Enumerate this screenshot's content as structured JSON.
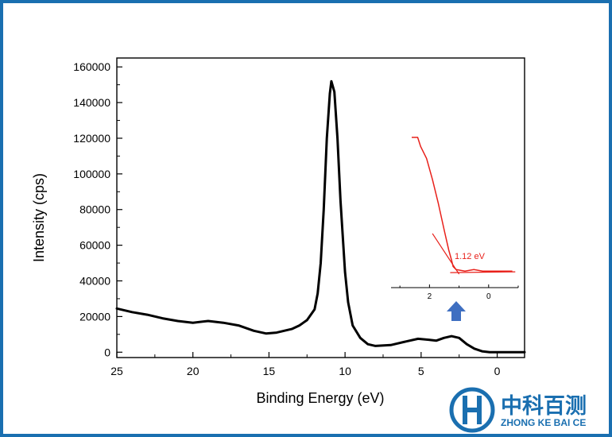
{
  "chart_data": {
    "type": "line",
    "xlabel": "Binding Energy (eV)",
    "ylabel": "Intensity (cps)",
    "xlim": [
      25,
      -1.8
    ],
    "ylim": [
      -3000,
      165000
    ],
    "x_ticks": [
      25,
      20,
      15,
      10,
      5,
      0
    ],
    "y_ticks": [
      0,
      20000,
      40000,
      60000,
      80000,
      100000,
      120000,
      140000,
      160000
    ],
    "series": [
      {
        "color": "#000000",
        "points": [
          [
            25.0,
            24500
          ],
          [
            24.0,
            22500
          ],
          [
            23.0,
            21000
          ],
          [
            22.0,
            19000
          ],
          [
            21.0,
            17500
          ],
          [
            20.0,
            16500
          ],
          [
            19.0,
            17500
          ],
          [
            18.0,
            16500
          ],
          [
            17.0,
            15000
          ],
          [
            16.0,
            12000
          ],
          [
            15.2,
            10500
          ],
          [
            14.5,
            11000
          ],
          [
            13.5,
            13000
          ],
          [
            13.0,
            15000
          ],
          [
            12.5,
            18000
          ],
          [
            12.0,
            24000
          ],
          [
            11.8,
            33000
          ],
          [
            11.6,
            50000
          ],
          [
            11.4,
            80000
          ],
          [
            11.2,
            120000
          ],
          [
            11.0,
            145000
          ],
          [
            10.9,
            152000
          ],
          [
            10.7,
            146000
          ],
          [
            10.5,
            120000
          ],
          [
            10.3,
            85000
          ],
          [
            10.0,
            45000
          ],
          [
            9.8,
            28000
          ],
          [
            9.5,
            15000
          ],
          [
            9.0,
            8000
          ],
          [
            8.5,
            4500
          ],
          [
            8.0,
            3500
          ],
          [
            7.0,
            4000
          ],
          [
            6.0,
            6000
          ],
          [
            5.2,
            7500
          ],
          [
            4.5,
            7000
          ],
          [
            4.0,
            6500
          ],
          [
            3.5,
            8000
          ],
          [
            3.0,
            9000
          ],
          [
            2.5,
            8000
          ],
          [
            2.0,
            4500
          ],
          [
            1.5,
            2000
          ],
          [
            1.0,
            500
          ],
          [
            0.5,
            0
          ],
          [
            -1.8,
            0
          ]
        ]
      }
    ],
    "inset": {
      "color": "#e8201a",
      "x_ticks": [
        2,
        0
      ],
      "annotation": "1.12 eV",
      "xlim": [
        3.3,
        -1.0
      ],
      "ylim": [
        0,
        110
      ],
      "curve": [
        [
          2.6,
          100
        ],
        [
          2.4,
          100
        ],
        [
          2.3,
          94
        ],
        [
          2.1,
          86
        ],
        [
          1.9,
          72
        ],
        [
          1.7,
          56
        ],
        [
          1.5,
          38
        ],
        [
          1.35,
          25
        ],
        [
          1.25,
          18
        ],
        [
          1.2,
          14
        ],
        [
          1.1,
          12
        ],
        [
          0.8,
          11
        ],
        [
          0.5,
          12
        ],
        [
          0.2,
          11
        ],
        [
          -0.3,
          11
        ],
        [
          -0.8,
          11
        ]
      ],
      "tangent": [
        [
          1.9,
          36
        ],
        [
          1.0,
          9
        ]
      ],
      "baseline": [
        [
          1.3,
          10
        ],
        [
          -0.9,
          10.5
        ]
      ]
    }
  },
  "logo": {
    "name_cn": "中科百测",
    "name_en": "ZHONG KE BAI CE",
    "color": "#1a6fb0"
  },
  "arrow_color": "#3f6fc1"
}
